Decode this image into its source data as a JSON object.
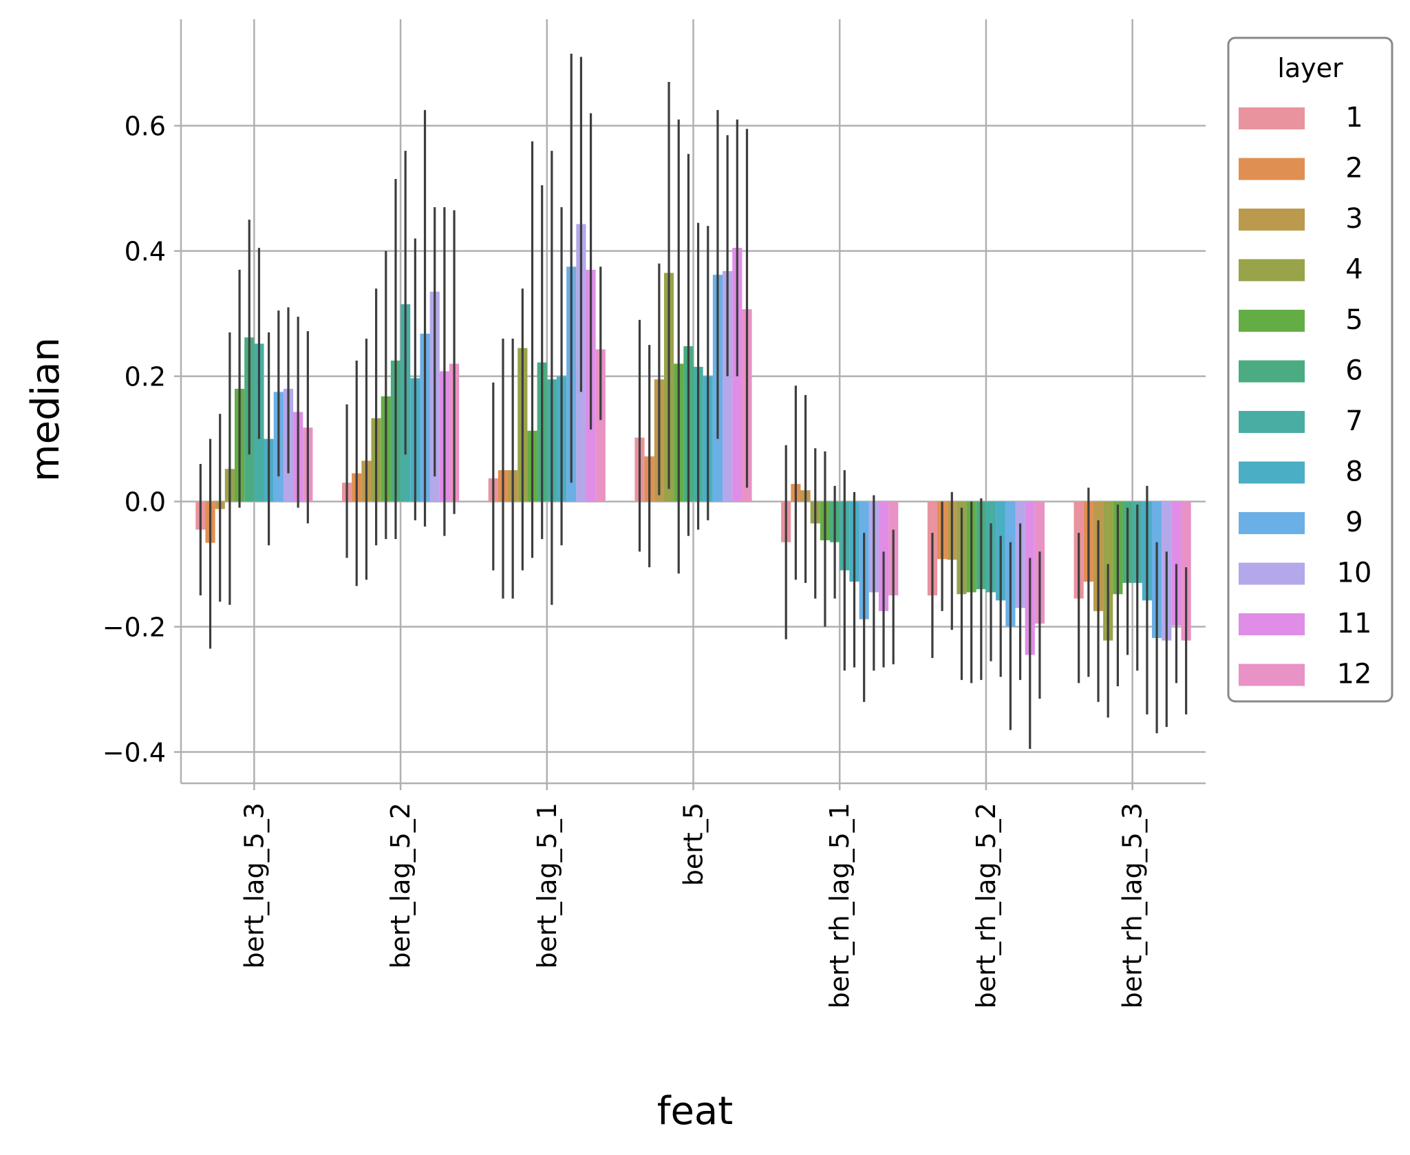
{
  "chart_data": {
    "type": "bar",
    "xlabel": "feat",
    "ylabel": "median",
    "ylim": [
      -0.45,
      0.77
    ],
    "yticks": [
      -0.4,
      -0.2,
      0.0,
      0.2,
      0.4,
      0.6
    ],
    "ytick_labels": [
      "−0.4",
      "−0.2",
      "0.0",
      "0.2",
      "0.4",
      "0.6"
    ],
    "grid": true,
    "legend_placement": "outside right",
    "legend_title": "layer",
    "categories": [
      "bert_lag_5_3",
      "bert_lag_5_2",
      "bert_lag_5_1",
      "bert_5",
      "bert_rh_lag_5_1",
      "bert_rh_lag_5_2",
      "bert_rh_lag_5_3"
    ],
    "series": [
      {
        "name": "1",
        "color": "#e8939e",
        "values": [
          -0.045,
          0.03,
          0.037,
          0.102,
          -0.065,
          -0.15,
          -0.155
        ],
        "err_low": [
          -0.15,
          -0.09,
          -0.11,
          -0.08,
          -0.22,
          -0.25,
          -0.29
        ],
        "err_high": [
          0.06,
          0.155,
          0.19,
          0.29,
          0.09,
          -0.05,
          -0.05
        ]
      },
      {
        "name": "2",
        "color": "#e08f52",
        "values": [
          -0.066,
          0.045,
          0.05,
          0.072,
          0.028,
          -0.092,
          -0.128
        ],
        "err_low": [
          -0.235,
          -0.135,
          -0.155,
          -0.105,
          -0.125,
          -0.175,
          -0.28
        ],
        "err_high": [
          0.1,
          0.225,
          0.26,
          0.25,
          0.185,
          0.0,
          0.022
        ]
      },
      {
        "name": "3",
        "color": "#bb9a4e",
        "values": [
          -0.012,
          0.065,
          0.05,
          0.195,
          0.018,
          -0.093,
          -0.175
        ],
        "err_low": [
          -0.16,
          -0.125,
          -0.155,
          0.01,
          -0.13,
          -0.205,
          -0.32
        ],
        "err_high": [
          0.14,
          0.26,
          0.26,
          0.38,
          0.17,
          0.015,
          -0.03
        ]
      },
      {
        "name": "4",
        "color": "#98a34a",
        "values": [
          0.052,
          0.133,
          0.245,
          0.365,
          -0.035,
          -0.148,
          -0.222
        ],
        "err_low": [
          -0.165,
          -0.07,
          -0.11,
          0.02,
          -0.155,
          -0.285,
          -0.345
        ],
        "err_high": [
          0.27,
          0.34,
          0.34,
          0.67,
          0.085,
          -0.01,
          -0.1
        ]
      },
      {
        "name": "5",
        "color": "#64ad45",
        "values": [
          0.18,
          0.168,
          0.113,
          0.22,
          -0.062,
          -0.145,
          -0.148
        ],
        "err_low": [
          -0.01,
          -0.06,
          -0.09,
          -0.115,
          -0.2,
          -0.29,
          -0.295
        ],
        "err_high": [
          0.37,
          0.4,
          0.575,
          0.61,
          0.08,
          0.0,
          -0.005
        ]
      },
      {
        "name": "6",
        "color": "#4aac80",
        "values": [
          0.262,
          0.225,
          0.222,
          0.248,
          -0.065,
          -0.14,
          -0.13
        ],
        "err_low": [
          0.075,
          -0.06,
          -0.06,
          -0.055,
          -0.155,
          -0.285,
          -0.245
        ],
        "err_high": [
          0.45,
          0.515,
          0.505,
          0.555,
          0.025,
          0.005,
          -0.01
        ]
      },
      {
        "name": "7",
        "color": "#48ada3",
        "values": [
          0.252,
          0.315,
          0.195,
          0.215,
          -0.11,
          -0.145,
          -0.13
        ],
        "err_low": [
          0.1,
          0.075,
          -0.165,
          -0.045,
          -0.27,
          -0.255,
          -0.27
        ],
        "err_high": [
          0.405,
          0.56,
          0.56,
          0.445,
          0.05,
          -0.035,
          -0.005
        ]
      },
      {
        "name": "8",
        "color": "#4aaec4",
        "values": [
          0.1,
          0.197,
          0.2,
          0.2,
          -0.128,
          -0.158,
          -0.158
        ],
        "err_low": [
          -0.07,
          -0.03,
          -0.07,
          -0.03,
          -0.265,
          -0.28,
          -0.34
        ],
        "err_high": [
          0.27,
          0.42,
          0.47,
          0.44,
          0.015,
          -0.055,
          0.025
        ]
      },
      {
        "name": "9",
        "color": "#6aafe5",
        "values": [
          0.175,
          0.268,
          0.375,
          0.362,
          -0.188,
          -0.2,
          -0.218
        ],
        "err_low": [
          0.04,
          -0.04,
          0.03,
          0.1,
          -0.32,
          -0.365,
          -0.37
        ],
        "err_high": [
          0.305,
          0.625,
          0.715,
          0.625,
          -0.05,
          -0.065,
          -0.065
        ]
      },
      {
        "name": "10",
        "color": "#b4a8ea",
        "values": [
          0.18,
          0.335,
          0.443,
          0.368,
          -0.145,
          -0.17,
          -0.222
        ],
        "err_low": [
          0.045,
          0.04,
          0.175,
          0.2,
          -0.27,
          -0.285,
          -0.36
        ],
        "err_high": [
          0.31,
          0.47,
          0.71,
          0.585,
          0.01,
          -0.035,
          -0.08
        ]
      },
      {
        "name": "11",
        "color": "#df8de7",
        "values": [
          0.143,
          0.208,
          0.37,
          0.405,
          -0.175,
          -0.245,
          -0.198
        ],
        "err_low": [
          -0.01,
          -0.055,
          0.115,
          0.2,
          -0.265,
          -0.395,
          -0.29
        ],
        "err_high": [
          0.295,
          0.47,
          0.62,
          0.61,
          -0.08,
          -0.09,
          -0.1
        ]
      },
      {
        "name": "12",
        "color": "#e892c5",
        "values": [
          0.118,
          0.22,
          0.243,
          0.307,
          -0.15,
          -0.195,
          -0.222
        ],
        "err_low": [
          -0.035,
          -0.02,
          0.13,
          0.022,
          -0.26,
          -0.315,
          -0.34
        ],
        "err_high": [
          0.272,
          0.465,
          0.375,
          0.595,
          -0.045,
          -0.08,
          -0.105
        ]
      }
    ]
  }
}
